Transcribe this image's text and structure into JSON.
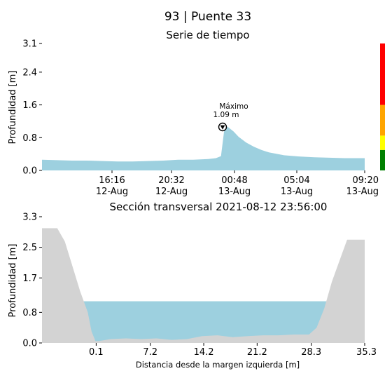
{
  "figure": {
    "title": "93 | Puente 33"
  },
  "chart_data": [
    {
      "type": "area",
      "title": "Serie de tiempo",
      "xlabel": "",
      "ylabel": "Profundidad [m]",
      "ylim": [
        0,
        3.1
      ],
      "y_ticks": [
        "0.0",
        "0.8",
        "1.6",
        "2.4",
        "3.1"
      ],
      "x_ticks": [
        {
          "time": "16:16",
          "date": "12-Aug"
        },
        {
          "time": "20:32",
          "date": "12-Aug"
        },
        {
          "time": "00:48",
          "date": "13-Aug"
        },
        {
          "time": "05:04",
          "date": "13-Aug"
        },
        {
          "time": "09:20",
          "date": "13-Aug"
        }
      ],
      "x_range": [
        "2021-08-12 12:00",
        "2021-08-13 09:20"
      ],
      "fill_color": "#9dd0df",
      "series": [
        {
          "x": [
            "2021-08-12 12:00",
            "2021-08-12 13:00",
            "2021-08-12 14:00",
            "2021-08-12 15:00",
            "2021-08-12 16:00",
            "2021-08-12 17:00",
            "2021-08-12 18:00",
            "2021-08-12 19:00",
            "2021-08-12 20:00",
            "2021-08-12 21:00",
            "2021-08-12 22:00",
            "2021-08-12 23:00",
            "2021-08-12 23:30",
            "2021-08-12 23:50",
            "2021-08-13 00:05",
            "2021-08-13 00:20",
            "2021-08-13 00:40",
            "2021-08-13 01:00",
            "2021-08-13 01:30",
            "2021-08-13 02:00",
            "2021-08-13 02:30",
            "2021-08-13 03:00",
            "2021-08-13 04:00",
            "2021-08-13 05:00",
            "2021-08-13 06:00",
            "2021-08-13 07:00",
            "2021-08-13 08:00",
            "2021-08-13 09:20"
          ],
          "values": [
            0.26,
            0.25,
            0.24,
            0.24,
            0.23,
            0.22,
            0.22,
            0.23,
            0.24,
            0.26,
            0.26,
            0.28,
            0.3,
            0.35,
            1.09,
            1.05,
            0.95,
            0.82,
            0.68,
            0.58,
            0.5,
            0.44,
            0.37,
            0.34,
            0.32,
            0.31,
            0.3,
            0.3
          ]
        }
      ],
      "annotation": {
        "label": "Máximo",
        "value_text": "1.09 m",
        "x": "2021-08-13 00:05",
        "y": 1.09
      },
      "alert_bar": [
        {
          "color": "#008000",
          "from": 0.0,
          "to": 0.5
        },
        {
          "color": "#ffff00",
          "from": 0.5,
          "to": 0.85
        },
        {
          "color": "#ffa500",
          "from": 0.85,
          "to": 1.6
        },
        {
          "color": "#ff0000",
          "from": 1.6,
          "to": 3.1
        }
      ]
    },
    {
      "type": "area",
      "title": "Sección transversal 2021-08-12 23:56:00",
      "xlabel": "Distancia desde la margen izquierda [m]",
      "ylabel": "Profundidad [m]",
      "xlim": [
        -7.0,
        35.3
      ],
      "ylim": [
        0,
        3.3
      ],
      "x_ticks": [
        "0.1",
        "7.2",
        "14.2",
        "21.2",
        "28.3",
        "35.3"
      ],
      "x_tick_values": [
        0.1,
        7.2,
        14.2,
        21.2,
        28.3,
        35.3
      ],
      "y_ticks": [
        "0.0",
        "0.8",
        "1.7",
        "2.5",
        "3.3"
      ],
      "water_level": 1.09,
      "water_color": "#9dd0df",
      "bank_color": "#d3d3d3",
      "series": [
        {
          "name": "",
          "x": [
            -7.0,
            -5.0,
            -4.0,
            -3.0,
            -2.0,
            -1.0,
            -0.5,
            0.0,
            0.5,
            2.0,
            4.0,
            6.0,
            8.0,
            10.0,
            12.0,
            14.0,
            16.0,
            18.0,
            20.0,
            22.0,
            24.0,
            26.0,
            28.0,
            29.0,
            30.0,
            31.0,
            33.0,
            35.3
          ],
          "values": [
            3.0,
            3.0,
            2.65,
            2.0,
            1.35,
            0.8,
            0.3,
            0.05,
            0.05,
            0.1,
            0.12,
            0.1,
            0.12,
            0.08,
            0.1,
            0.18,
            0.2,
            0.15,
            0.18,
            0.2,
            0.2,
            0.22,
            0.22,
            0.4,
            0.9,
            1.6,
            2.7,
            2.7
          ]
        }
      ]
    }
  ]
}
